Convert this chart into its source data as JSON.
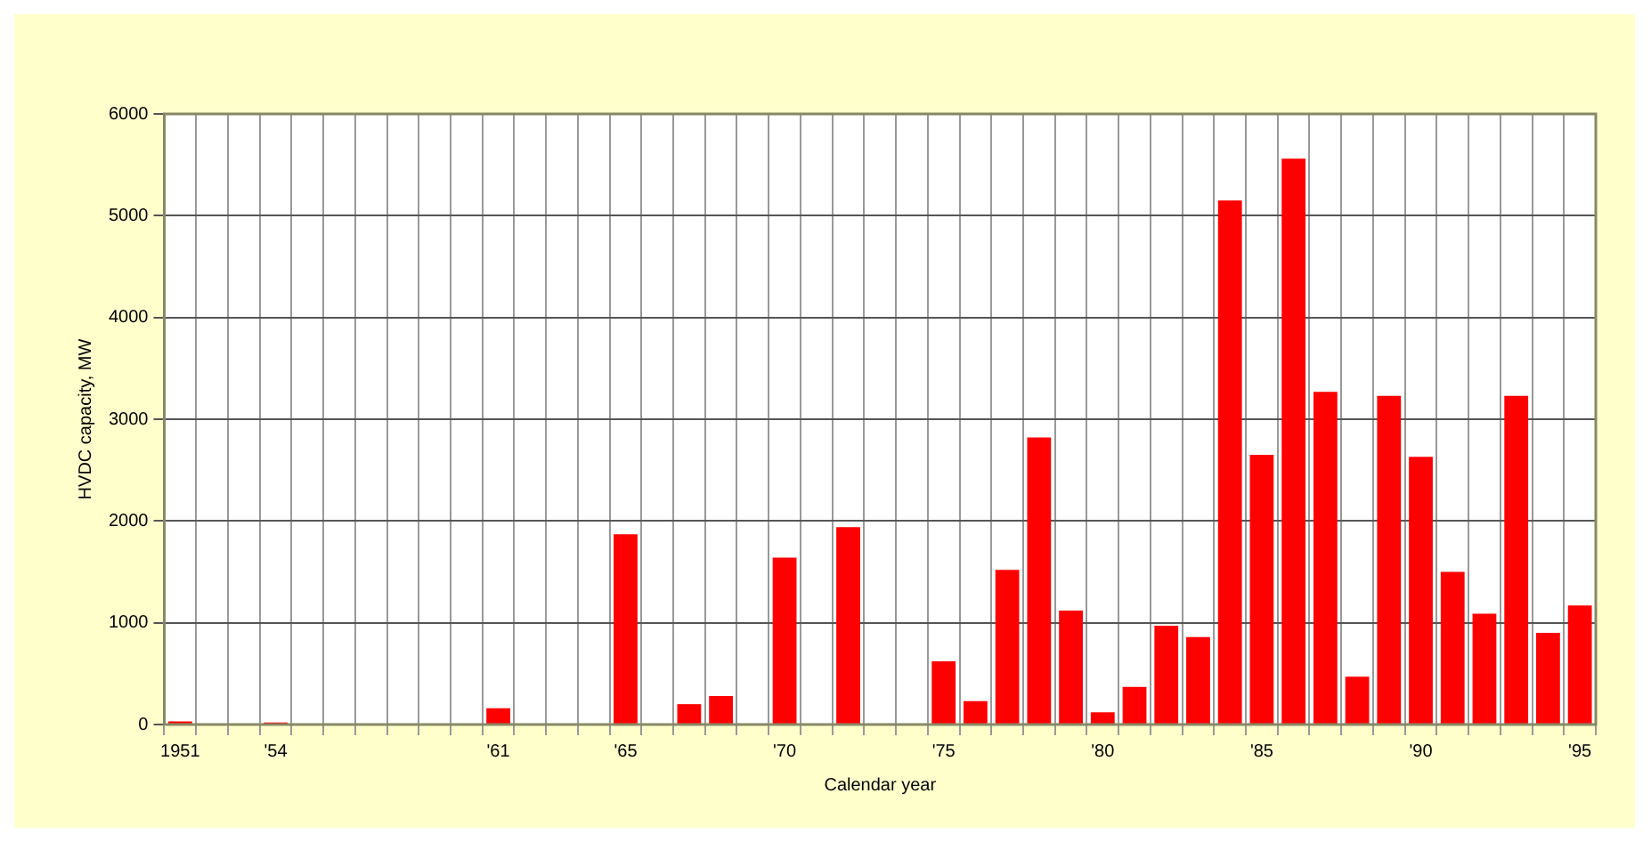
{
  "chart_data": {
    "type": "bar",
    "xlabel": "Calendar year",
    "ylabel": "HVDC capacity, MW",
    "categories": [
      "1951",
      null,
      null,
      "'54",
      null,
      null,
      null,
      null,
      null,
      null,
      "'61",
      null,
      null,
      null,
      "'65",
      null,
      null,
      null,
      null,
      "'70",
      null,
      null,
      null,
      null,
      "'75",
      null,
      null,
      null,
      null,
      "'80",
      null,
      null,
      null,
      null,
      "'85",
      null,
      null,
      null,
      null,
      "'90",
      null,
      null,
      null,
      null,
      "'95"
    ],
    "values": [
      30,
      0,
      0,
      20,
      0,
      0,
      0,
      0,
      0,
      0,
      160,
      0,
      0,
      0,
      1870,
      0,
      200,
      280,
      0,
      1640,
      0,
      1940,
      0,
      0,
      620,
      230,
      1520,
      2820,
      1120,
      120,
      370,
      970,
      860,
      5150,
      2650,
      5560,
      3270,
      470,
      3230,
      2630,
      1500,
      1090,
      3230,
      900,
      1170
    ],
    "color": "#ff0000",
    "ylim": [
      0,
      6000
    ],
    "yticks": [
      0,
      1000,
      2000,
      3000,
      4000,
      5000,
      6000
    ],
    "grid": true
  }
}
